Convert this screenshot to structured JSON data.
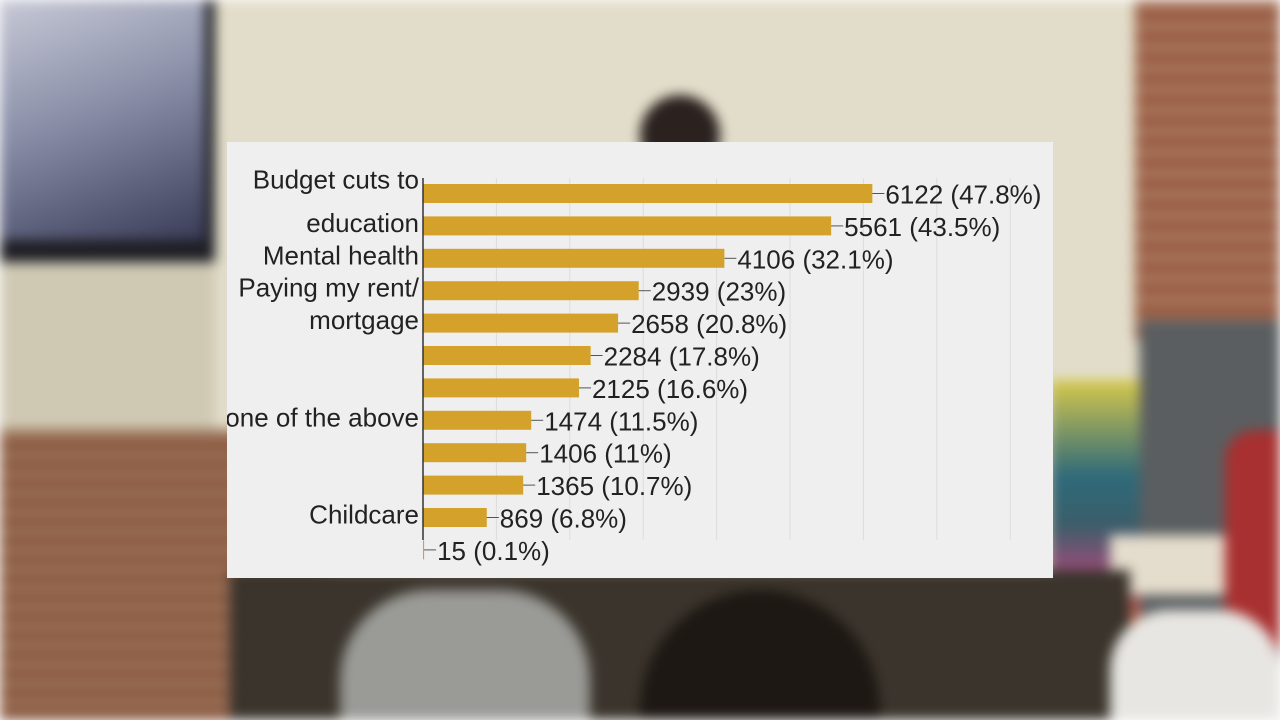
{
  "colors": {
    "bar": "#d4a22b",
    "card_background": "#efefef"
  },
  "chart_data": {
    "type": "bar",
    "orientation": "horizontal",
    "title": "",
    "xlabel": "",
    "ylabel": "",
    "xlim": [
      0,
      6800
    ],
    "grid": true,
    "legend": "none",
    "category_labels": [
      {
        "text": "Budget cuts to",
        "row": 0
      },
      {
        "text": "education",
        "row": 1
      },
      {
        "text": "Mental health",
        "row": 2
      },
      {
        "text": "Paying my rent/",
        "row": 3
      },
      {
        "text": "mortgage",
        "row": 4
      },
      {
        "text": "None of the above",
        "row": 7
      },
      {
        "text": "Childcare",
        "row": 10
      }
    ],
    "values": [
      6122,
      5561,
      4106,
      2939,
      2658,
      2284,
      2125,
      1474,
      1406,
      1365,
      869,
      15
    ],
    "data_labels": [
      "6122 (47.8%)",
      "5561 (43.5%)",
      "4106 (32.1%)",
      "2939 (23%)",
      "2658 (20.8%)",
      "2284 (17.8%)",
      "2125 (16.6%)",
      "1474 (11.5%)",
      "1406 (11%)",
      "1365 (10.7%)",
      "869 (6.8%)",
      "15 (0.1%)"
    ]
  }
}
